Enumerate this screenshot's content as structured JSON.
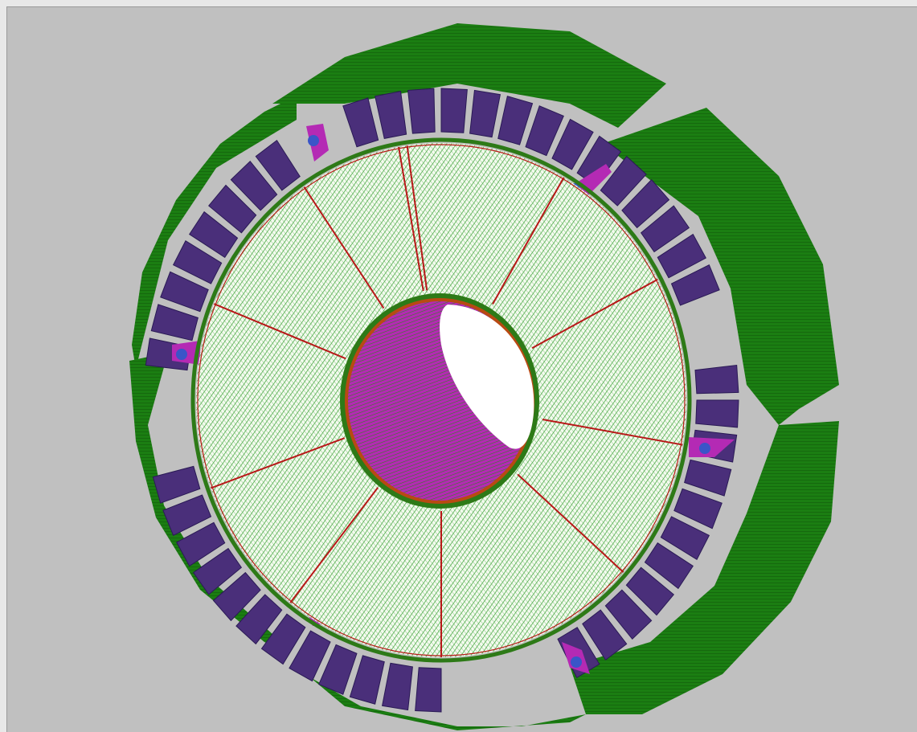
{
  "scene": {
    "colors": {
      "background": "#c0c0c0",
      "outer_frame": "#1b7e12",
      "outer_frame_dark": "#0f4f0a",
      "coil_block": "#4a2f7a",
      "coil_block_edge": "#2a1a55",
      "disk_fill": "#f4fbef",
      "disk_hatch": "#2f9b2a",
      "spoke": "#b81818",
      "rim": "#2d7a17",
      "bore_wall": "#b42ab4",
      "bore_hole": "#ffffff",
      "support_plate": "#b42ab4",
      "support_bolt": "#3a55c8"
    },
    "icons": [
      "support-bolt-icon"
    ]
  }
}
